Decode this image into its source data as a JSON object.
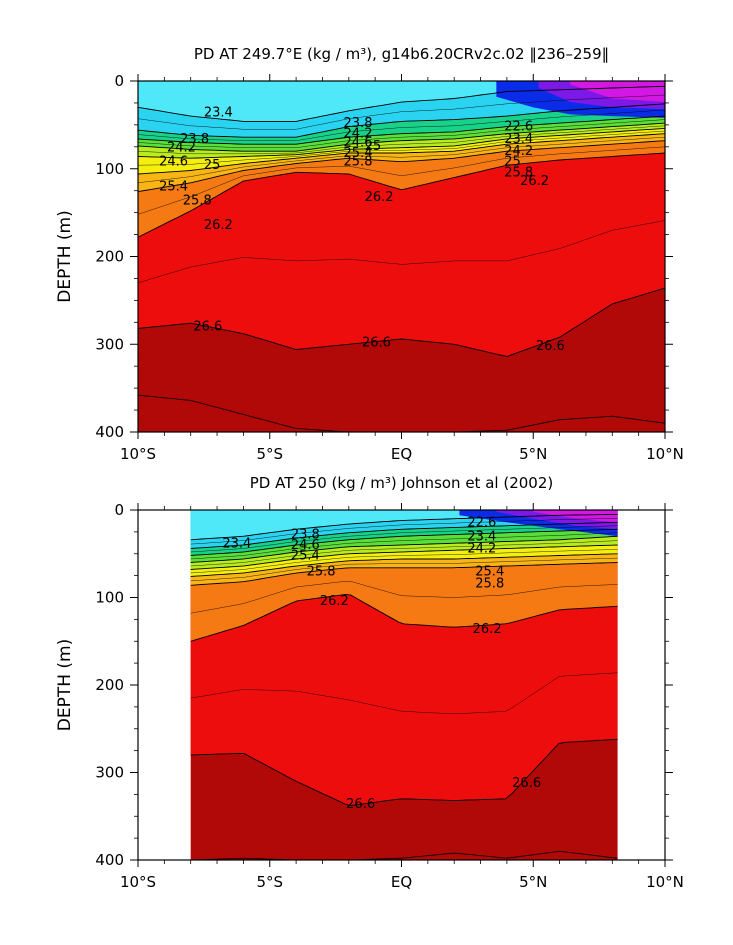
{
  "chart_data": [
    {
      "type": "contour",
      "title": "PD AT 249.7°E (kg / m³), g14b6.20CRv2c.02 ‖236–259‖",
      "xlabel": "",
      "ylabel": "DEPTH (m)",
      "xlim": [
        -10,
        10
      ],
      "ylim": [
        0,
        400
      ],
      "y_inverted": true,
      "x_ticks": [
        -10,
        -5,
        0,
        5,
        10
      ],
      "x_tick_labels": [
        "10°S",
        "5°S",
        "EQ",
        "5°N",
        "10°N"
      ],
      "y_ticks": [
        0,
        100,
        200,
        300,
        400
      ],
      "y_tick_labels": [
        "0",
        "100",
        "200",
        "300",
        "400"
      ],
      "data_x_range": [
        -10,
        10
      ],
      "grid": false,
      "colors": {
        "lt_23_4": "#4ee8f8",
        "23_4_to_23_8": "#2ad4f0",
        "23_8_to_24_2": "#19d28a",
        "24_2_to_24_6": "#59de3a",
        "24_6_to_25": "#b8ec20",
        "25_to_25_4": "#f5ef10",
        "25_4_to_25_8": "#f9b415",
        "25_8_to_26_2": "#f57a14",
        "26_2_to_26_6": "#ee0d0d",
        "gt_26_6": "#cc0a0a",
        "gt_27": "#b10808",
        "ge_22_blue": "#0a2ce8",
        "ge_21_violet": "#7c18e8",
        "ge_20_magenta": "#d218e2"
      },
      "isopycnals": [
        {
          "value": 23.4,
          "x": [
            -10,
            -8,
            -6,
            -4,
            -2,
            0,
            2,
            4,
            6,
            8,
            10
          ],
          "depth": [
            30,
            40,
            46,
            46,
            34,
            24,
            20,
            12,
            10,
            8,
            6
          ]
        },
        {
          "value": 23.8,
          "x": [
            -10,
            -8,
            -6,
            -4,
            -2,
            0,
            2,
            4,
            6,
            8,
            10
          ],
          "depth": [
            56,
            62,
            64,
            64,
            52,
            46,
            44,
            40,
            34,
            30,
            26
          ]
        },
        {
          "value": 24.2,
          "x": [
            -10,
            -8,
            -6,
            -4,
            -2,
            0,
            2,
            4,
            6,
            8,
            10
          ],
          "depth": [
            66,
            70,
            72,
            72,
            64,
            60,
            58,
            52,
            48,
            44,
            40
          ]
        },
        {
          "value": 24.6,
          "x": [
            -10,
            -8,
            -6,
            -4,
            -2,
            0,
            2,
            4,
            6,
            8,
            10
          ],
          "depth": [
            74,
            78,
            80,
            80,
            72,
            68,
            66,
            60,
            56,
            52,
            48
          ]
        },
        {
          "value": 25.0,
          "x": [
            -10,
            -8,
            -6,
            -4,
            -2,
            0,
            2,
            4,
            6,
            8,
            10
          ],
          "depth": [
            86,
            88,
            86,
            84,
            78,
            76,
            74,
            66,
            62,
            58,
            54
          ]
        },
        {
          "value": 25.4,
          "x": [
            -10,
            -8,
            -6,
            -4,
            -2,
            0,
            2,
            4,
            6,
            8,
            10
          ],
          "depth": [
            106,
            102,
            94,
            88,
            82,
            82,
            80,
            72,
            68,
            64,
            60
          ]
        },
        {
          "value": 25.8,
          "x": [
            -10,
            -8,
            -6,
            -4,
            -2,
            0,
            2,
            4,
            6,
            8,
            10
          ],
          "depth": [
            126,
            116,
            102,
            94,
            88,
            92,
            88,
            80,
            76,
            72,
            68
          ]
        },
        {
          "value": 26.2,
          "x": [
            -10,
            -8,
            -6,
            -4,
            -2,
            0,
            2,
            4,
            6,
            8,
            10
          ],
          "depth": [
            178,
            148,
            114,
            104,
            106,
            124,
            110,
            96,
            90,
            86,
            82
          ]
        },
        {
          "value": 26.6,
          "x": [
            -10,
            -8,
            -6,
            -4,
            -2,
            0,
            2,
            4,
            6,
            8,
            10
          ],
          "depth": [
            282,
            276,
            288,
            306,
            300,
            294,
            300,
            314,
            292,
            254,
            236
          ]
        }
      ],
      "labels": [
        {
          "text": "23.4",
          "x": -7.5,
          "depth": 36
        },
        {
          "text": "23.8",
          "x": -8.4,
          "depth": 66
        },
        {
          "text": "24.2",
          "x": -8.9,
          "depth": 76
        },
        {
          "text": "24.6",
          "x": -9.2,
          "depth": 92
        },
        {
          "text": "25",
          "x": -7.5,
          "depth": 96
        },
        {
          "text": "25.4",
          "x": -9.2,
          "depth": 120
        },
        {
          "text": "25.8",
          "x": -8.3,
          "depth": 136
        },
        {
          "text": "26.2",
          "x": -7.5,
          "depth": 164
        },
        {
          "text": "26.6",
          "x": -7.9,
          "depth": 280
        },
        {
          "text": "26.6",
          "x": -1.5,
          "depth": 298
        },
        {
          "text": "26.6",
          "x": 5.1,
          "depth": 302
        },
        {
          "text": "23.8",
          "x": -2.2,
          "depth": 48
        },
        {
          "text": "24.2",
          "x": -2.2,
          "depth": 60
        },
        {
          "text": "24.6",
          "x": -2.2,
          "depth": 70
        },
        {
          "text": "25",
          "x": -1.4,
          "depth": 74
        },
        {
          "text": "25.4",
          "x": -2.2,
          "depth": 82
        },
        {
          "text": "25.8",
          "x": -2.2,
          "depth": 92
        },
        {
          "text": "26.2",
          "x": -1.4,
          "depth": 132
        },
        {
          "text": "22.6",
          "x": 3.9,
          "depth": 52
        },
        {
          "text": "23.4",
          "x": 3.9,
          "depth": 66
        },
        {
          "text": "24.2",
          "x": 3.9,
          "depth": 80
        },
        {
          "text": "25",
          "x": 3.9,
          "depth": 92
        },
        {
          "text": "25.8",
          "x": 3.9,
          "depth": 104
        },
        {
          "text": "26.2",
          "x": 4.5,
          "depth": 114
        }
      ]
    },
    {
      "type": "contour",
      "title": "PD AT 250 (kg / m³) Johnson et al (2002)",
      "xlabel": "",
      "ylabel": "DEPTH (m)",
      "xlim": [
        -10,
        10
      ],
      "ylim": [
        0,
        400
      ],
      "y_inverted": true,
      "x_ticks": [
        -10,
        -5,
        0,
        5,
        10
      ],
      "x_tick_labels": [
        "10°S",
        "5°S",
        "EQ",
        "5°N",
        "10°N"
      ],
      "y_ticks": [
        0,
        100,
        200,
        300,
        400
      ],
      "y_tick_labels": [
        "0",
        "100",
        "200",
        "300",
        "400"
      ],
      "data_x_range": [
        -8,
        8.2
      ],
      "grid": false,
      "colors": {
        "lt_23_4": "#4ee8f8",
        "23_4_to_23_8": "#2ad4f0",
        "23_8_to_24_2": "#19d28a",
        "24_2_to_24_6": "#59de3a",
        "24_6_to_25": "#b8ec20",
        "25_to_25_4": "#f5ef10",
        "25_4_to_25_8": "#f9b415",
        "25_8_to_26_2": "#f57a14",
        "26_2_to_26_6": "#ee0d0d",
        "gt_26_6": "#cc0a0a",
        "gt_27": "#b10808",
        "ge_22_blue": "#0a2ce8",
        "ge_21_violet": "#7c18e8",
        "ge_20_magenta": "#d218e2"
      },
      "isopycnals": [
        {
          "value": 23.4,
          "x": [
            -8,
            -6,
            -4,
            -2,
            0,
            2,
            4,
            6,
            8.2
          ],
          "depth": [
            34,
            30,
            22,
            16,
            12,
            10,
            8,
            6,
            5
          ]
        },
        {
          "value": 23.8,
          "x": [
            -8,
            -6,
            -4,
            -2,
            0,
            2,
            4,
            6,
            8.2
          ],
          "depth": [
            44,
            40,
            32,
            26,
            22,
            20,
            18,
            16,
            14
          ]
        },
        {
          "value": 24.2,
          "x": [
            -8,
            -6,
            -4,
            -2,
            0,
            2,
            4,
            6,
            8.2
          ],
          "depth": [
            52,
            48,
            40,
            34,
            30,
            28,
            26,
            24,
            22
          ]
        },
        {
          "value": 24.6,
          "x": [
            -8,
            -6,
            -4,
            -2,
            0,
            2,
            4,
            6,
            8.2
          ],
          "depth": [
            60,
            56,
            48,
            42,
            40,
            38,
            36,
            34,
            30
          ]
        },
        {
          "value": 25.0,
          "x": [
            -8,
            -6,
            -4,
            -2,
            0,
            2,
            4,
            6,
            8.2
          ],
          "depth": [
            68,
            64,
            56,
            50,
            48,
            46,
            44,
            42,
            40
          ]
        },
        {
          "value": 25.4,
          "x": [
            -8,
            -6,
            -4,
            -2,
            0,
            2,
            4,
            6,
            8.2
          ],
          "depth": [
            76,
            72,
            64,
            58,
            56,
            56,
            54,
            52,
            50
          ]
        },
        {
          "value": 25.8,
          "x": [
            -8,
            -6,
            -4,
            -2,
            0,
            2,
            4,
            6,
            8.2
          ],
          "depth": [
            86,
            82,
            72,
            66,
            66,
            66,
            64,
            62,
            60
          ]
        },
        {
          "value": 26.2,
          "x": [
            -8,
            -6,
            -4,
            -2,
            0,
            2,
            4,
            6,
            8.2
          ],
          "depth": [
            150,
            132,
            104,
            96,
            130,
            134,
            130,
            114,
            110
          ]
        },
        {
          "value": 26.6,
          "x": [
            -8,
            -6,
            -4,
            -2,
            0,
            2,
            4,
            6,
            8.2
          ],
          "depth": [
            280,
            278,
            310,
            338,
            330,
            332,
            330,
            266,
            262
          ]
        }
      ],
      "labels": [
        {
          "text": "23.4",
          "x": -6.8,
          "depth": 38
        },
        {
          "text": "26.2",
          "x": -3.1,
          "depth": 104
        },
        {
          "text": "26.2",
          "x": 2.7,
          "depth": 136
        },
        {
          "text": "26.6",
          "x": -2.1,
          "depth": 336
        },
        {
          "text": "26.6",
          "x": 4.2,
          "depth": 312
        },
        {
          "text": "23.8",
          "x": -4.2,
          "depth": 28
        },
        {
          "text": "24.6",
          "x": -4.2,
          "depth": 40
        },
        {
          "text": "25.4",
          "x": -4.2,
          "depth": 52
        },
        {
          "text": "25.8",
          "x": -3.6,
          "depth": 70
        },
        {
          "text": "22.6",
          "x": 2.5,
          "depth": 14
        },
        {
          "text": "23.4",
          "x": 2.5,
          "depth": 30
        },
        {
          "text": "24.2",
          "x": 2.5,
          "depth": 44
        },
        {
          "text": "25.4",
          "x": 2.8,
          "depth": 70
        },
        {
          "text": "25.8",
          "x": 2.8,
          "depth": 84
        }
      ]
    }
  ]
}
